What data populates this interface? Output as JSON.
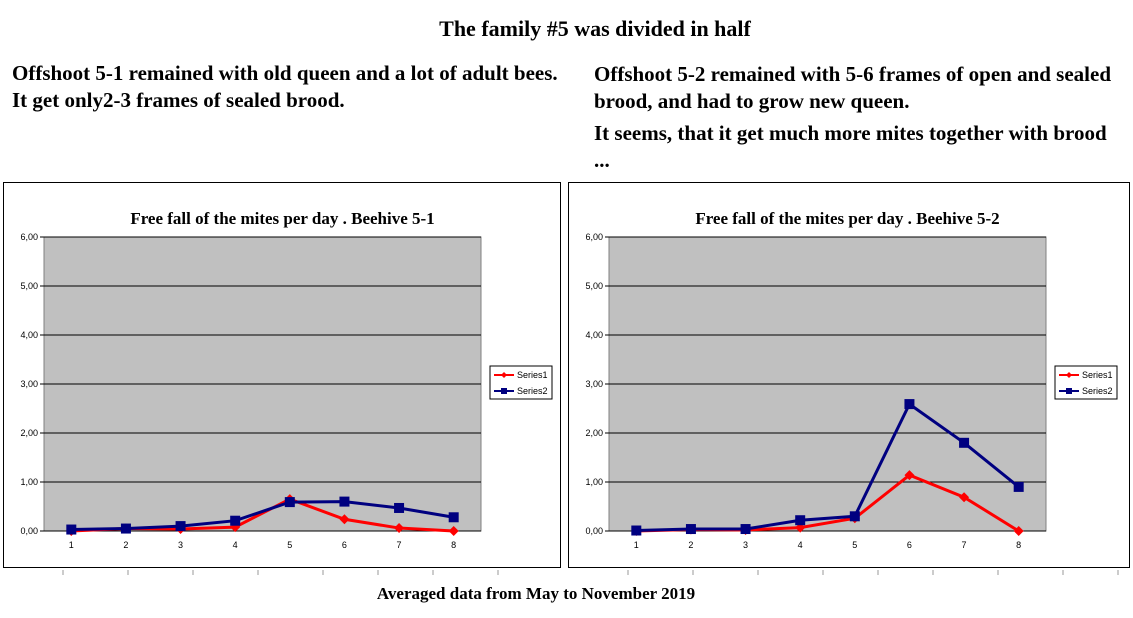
{
  "header": {
    "title": "The family #5 was divided in half"
  },
  "notes": {
    "left": "Offshoot 5-1 remained with old queen and a lot of adult bees. It get only2-3 frames of sealed brood.",
    "right": "Offshoot 5-2 remained with 5-6 frames of open and sealed brood, and had to grow new queen.",
    "right_2": "It seems, that it get much more mites together with brood ..."
  },
  "footer": {
    "text": "Averaged data from May to November 2019"
  },
  "colors": {
    "series1": "#ff0000",
    "series2": "#000080",
    "plot_bg": "#c0c0c0"
  },
  "chart_data": [
    {
      "type": "line",
      "title": "Free fall of the mites per day . Beehive 5-1",
      "categories": [
        "1",
        "2",
        "3",
        "4",
        "5",
        "6",
        "7",
        "8"
      ],
      "y_ticks": [
        "0,00",
        "1,00",
        "2,00",
        "3,00",
        "4,00",
        "5,00",
        "6,00"
      ],
      "ylim": [
        0,
        6
      ],
      "grid": true,
      "legend_position": "right",
      "series": [
        {
          "name": "Series1",
          "values": [
            0.0,
            0.05,
            0.04,
            0.08,
            0.65,
            0.24,
            0.06,
            0.0
          ]
        },
        {
          "name": "Series2",
          "values": [
            0.03,
            0.05,
            0.1,
            0.21,
            0.59,
            0.6,
            0.47,
            0.28
          ]
        }
      ]
    },
    {
      "type": "line",
      "title": "Free fall of the mites per day . Beehive 5-2",
      "categories": [
        "1",
        "2",
        "3",
        "4",
        "5",
        "6",
        "7",
        "8"
      ],
      "y_ticks": [
        "0,00",
        "1,00",
        "2,00",
        "3,00",
        "4,00",
        "5,00",
        "6,00"
      ],
      "ylim": [
        0,
        6
      ],
      "grid": true,
      "legend_position": "right",
      "series": [
        {
          "name": "Series1",
          "values": [
            0.0,
            0.03,
            0.02,
            0.07,
            0.26,
            1.14,
            0.69,
            0.0
          ]
        },
        {
          "name": "Series2",
          "values": [
            0.01,
            0.04,
            0.04,
            0.22,
            0.3,
            2.59,
            1.8,
            0.9
          ]
        }
      ]
    }
  ]
}
